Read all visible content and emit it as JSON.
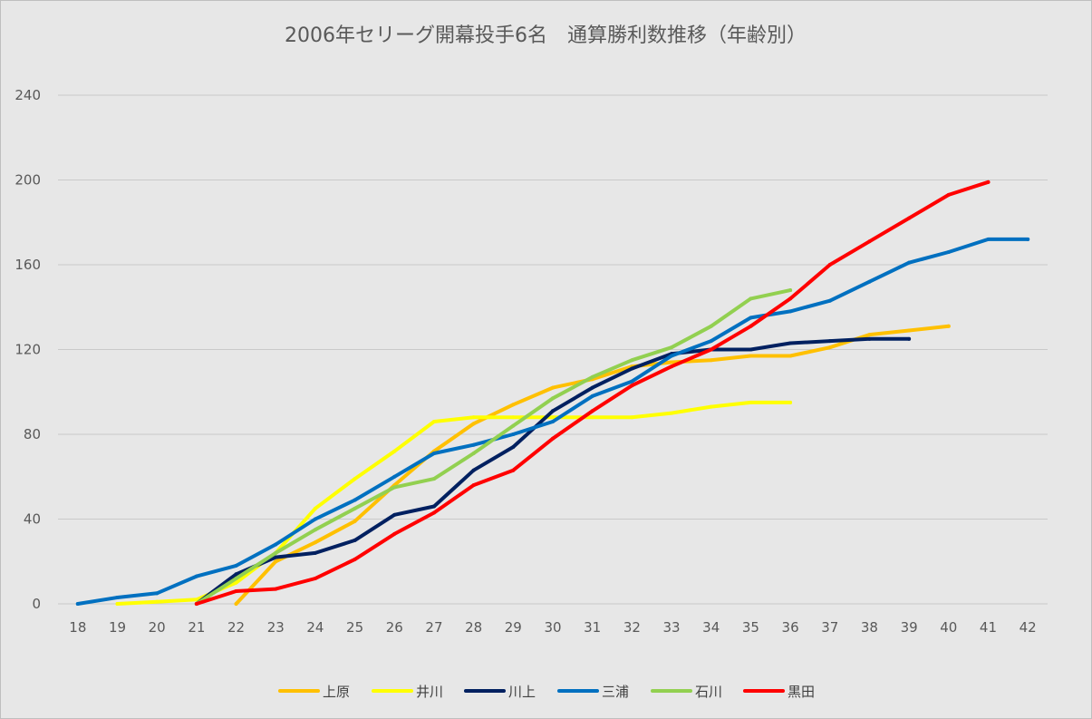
{
  "chart_data": {
    "type": "line",
    "title": "2006年セリーグ開幕投手6名　通算勝利数推移（年齢別）",
    "xlabel": "",
    "ylabel": "",
    "x": [
      18,
      19,
      20,
      21,
      22,
      23,
      24,
      25,
      26,
      27,
      28,
      29,
      30,
      31,
      32,
      33,
      34,
      35,
      36,
      37,
      38,
      39,
      40,
      41,
      42
    ],
    "ylim": [
      0,
      240
    ],
    "yticks": [
      0,
      40,
      80,
      120,
      160,
      200,
      240
    ],
    "grid": true,
    "legend_position": "bottom",
    "series": [
      {
        "name": "上原",
        "color": "#ffc000",
        "x": [
          22,
          23,
          24,
          25,
          26,
          27,
          28,
          29,
          30,
          31,
          32,
          33,
          34,
          35,
          36,
          37,
          38,
          39,
          40
        ],
        "values": [
          0,
          20,
          29,
          39,
          56,
          72,
          85,
          94,
          102,
          106,
          112,
          114,
          115,
          117,
          117,
          121,
          127,
          129,
          131
        ]
      },
      {
        "name": "井川",
        "color": "#ffff00",
        "x": [
          19,
          20,
          21,
          22,
          23,
          24,
          25,
          26,
          27,
          28,
          29,
          30,
          31,
          32,
          33,
          34,
          35,
          36
        ],
        "values": [
          0,
          1,
          2,
          10,
          24,
          45,
          59,
          72,
          86,
          88,
          88,
          88,
          88,
          88,
          90,
          93,
          95,
          95
        ]
      },
      {
        "name": "川上",
        "color": "#002060",
        "x": [
          21,
          22,
          23,
          24,
          25,
          26,
          27,
          28,
          29,
          30,
          31,
          32,
          33,
          34,
          35,
          36,
          37,
          38,
          39
        ],
        "values": [
          0,
          14,
          22,
          24,
          30,
          42,
          46,
          63,
          74,
          91,
          102,
          111,
          118,
          120,
          120,
          123,
          124,
          125,
          125
        ]
      },
      {
        "name": "三浦",
        "color": "#0070c0",
        "x": [
          18,
          19,
          20,
          21,
          22,
          23,
          24,
          25,
          26,
          27,
          28,
          29,
          30,
          31,
          32,
          33,
          34,
          35,
          36,
          37,
          38,
          39,
          40,
          41,
          42
        ],
        "values": [
          0,
          3,
          5,
          13,
          18,
          28,
          40,
          49,
          60,
          71,
          75,
          80,
          86,
          98,
          105,
          117,
          124,
          135,
          138,
          143,
          152,
          161,
          166,
          172,
          172
        ]
      },
      {
        "name": "石川",
        "color": "#92d050",
        "x": [
          21,
          22,
          23,
          24,
          25,
          26,
          27,
          28,
          29,
          30,
          31,
          32,
          33,
          34,
          35,
          36
        ],
        "values": [
          0,
          12,
          24,
          35,
          45,
          55,
          59,
          71,
          84,
          97,
          107,
          115,
          121,
          131,
          144,
          148
        ]
      },
      {
        "name": "黒田",
        "color": "#ff0000",
        "x": [
          21,
          22,
          23,
          24,
          25,
          26,
          27,
          28,
          29,
          30,
          31,
          32,
          33,
          34,
          35,
          36,
          37,
          38,
          39,
          40,
          41
        ],
        "values": [
          0,
          6,
          7,
          12,
          21,
          33,
          43,
          56,
          63,
          78,
          91,
          103,
          112,
          120,
          131,
          144,
          160,
          171,
          182,
          193,
          199
        ]
      }
    ]
  }
}
